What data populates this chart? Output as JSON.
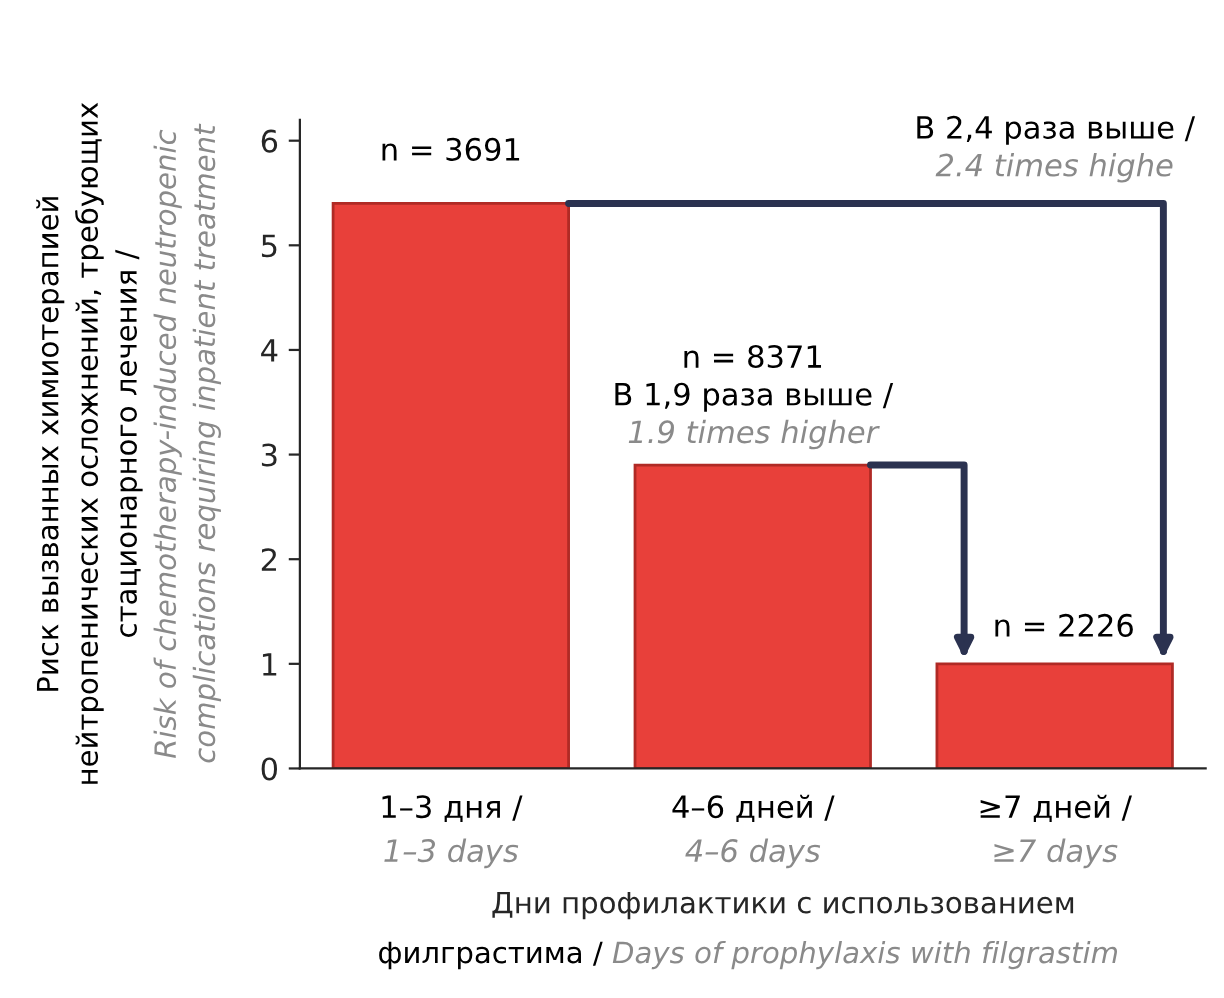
{
  "chart_data": {
    "type": "bar",
    "categories": [
      "1–3 дня /\n1–3 days",
      "4–6 дней /\n4–6 days",
      "≥7 дней /\n≥7 days"
    ],
    "values": [
      5.4,
      2.9,
      1.0
    ],
    "color": "#e8403a",
    "ylim": [
      0,
      6.2
    ],
    "yticks": [
      0,
      1,
      2,
      3,
      4,
      5,
      6
    ],
    "ylabel": "Риск вызванных химиотерапией\nнейтропенических осложнений, требующих\nстационарного лечения /\nRisk of chemotherapy-induced neutropenic\ncomplications requiring inpatient treatment",
    "xlabel": "Дни профилактики с использованием\nфилграстима /\nDays of prophylaxis with filgrastim",
    "annotations": [
      "n = 3691",
      "n = 8371\nВ 1,9 раза выше /\n1.9 times higher",
      "n = 2226",
      "В 2,4 раза выше /\n2.4 times highe"
    ],
    "grid": false
  }
}
